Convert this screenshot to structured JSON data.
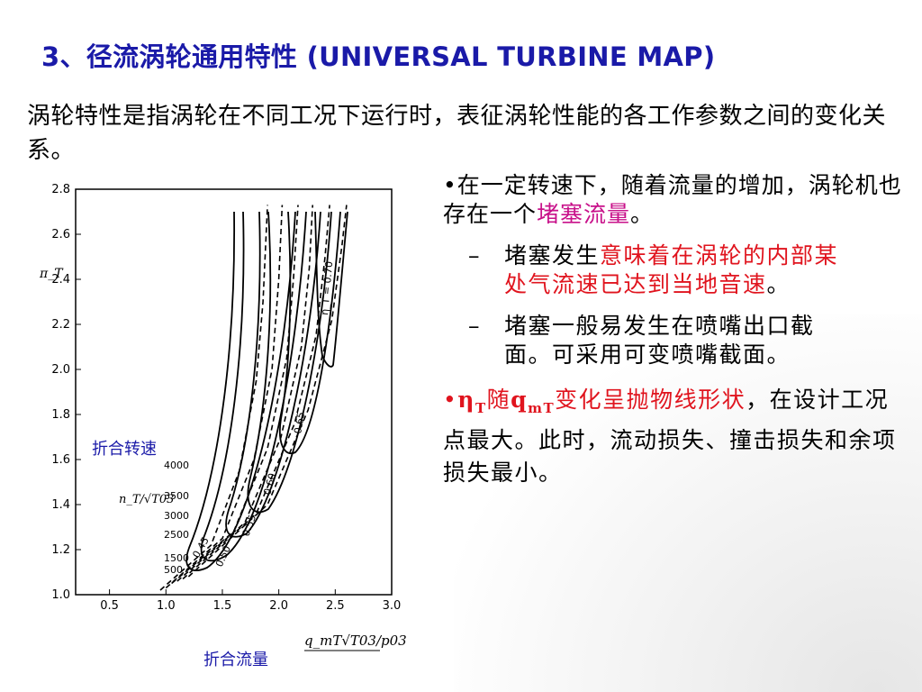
{
  "title": "3、径流涡轮通用特性 (UNIVERSAL TURBINE MAP)",
  "intro": "涡轮特性是指涡轮在不同工况下运行时，表征涡轮性能的各工作参数之间的变化关系。",
  "labels": {
    "speed": "折合转速",
    "flow": "折合流量"
  },
  "bullet1": {
    "prefix": "•在一定转速下，随着流量的增加，涡轮机也存在一个",
    "highlight": "堵塞流量",
    "suffix": "。"
  },
  "sub1": {
    "dash": "–",
    "prefix": "堵塞发生",
    "highlight": "意味着在涡轮的内部某处气流速已达到当地音速",
    "suffix": "。"
  },
  "sub2": {
    "dash": "–",
    "text": "堵塞一般易发生在喷嘴出口截面。可采用可变喷嘴截面。"
  },
  "bullet3": {
    "bullet": "•",
    "eta": "η",
    "eta_sub": "T",
    "sui": "随",
    "q": "q",
    "q_sub": "mT",
    "highlight": "变化呈抛物线形状",
    "suffix": "，在设计工况点最大。此时，流动损失、撞击损失和余项损失最小。"
  },
  "colors": {
    "title": "#1a1aa8",
    "red": "#e0141e",
    "magenta": "#c8118a"
  },
  "chart_data": {
    "type": "line",
    "x_ticks": [
      "0.5",
      "1.0",
      "1.5",
      "2.0",
      "2.5",
      "3.0"
    ],
    "y_ticks": [
      "1.0",
      "1.2",
      "1.4",
      "1.6",
      "1.8",
      "2.0",
      "2.2",
      "2.4",
      "2.6",
      "2.8"
    ],
    "xlim": [
      0.2,
      3.0
    ],
    "ylim": [
      1.0,
      2.8
    ],
    "ylabel": "π_T",
    "speed_label": "n_T/√T03",
    "flow_label": "q_mT√T03/p03",
    "speed_lines": [
      "4000",
      "3500",
      "3000",
      "2500",
      "1500",
      "500"
    ],
    "efficiency_labels": [
      "η_T = 0.70",
      "0.65",
      "0.60",
      "0.55",
      "0.50",
      "0.45"
    ],
    "speed_lines_values": [
      [
        [
          0.95,
          1.02
        ],
        [
          1.4,
          1.22
        ],
        [
          1.65,
          1.55
        ],
        [
          1.8,
          1.95
        ],
        [
          1.86,
          2.3
        ],
        [
          1.9,
          2.73
        ]
      ],
      [
        [
          1.0,
          1.03
        ],
        [
          1.5,
          1.25
        ],
        [
          1.78,
          1.6
        ],
        [
          1.94,
          2.0
        ],
        [
          2.0,
          2.4
        ],
        [
          2.03,
          2.73
        ]
      ],
      [
        [
          1.05,
          1.05
        ],
        [
          1.6,
          1.28
        ],
        [
          1.9,
          1.65
        ],
        [
          2.07,
          2.05
        ],
        [
          2.13,
          2.4
        ],
        [
          2.17,
          2.73
        ]
      ],
      [
        [
          1.1,
          1.06
        ],
        [
          1.7,
          1.32
        ],
        [
          2.02,
          1.7
        ],
        [
          2.2,
          2.1
        ],
        [
          2.27,
          2.45
        ],
        [
          2.3,
          2.73
        ]
      ],
      [
        [
          1.15,
          1.07
        ],
        [
          1.8,
          1.36
        ],
        [
          2.14,
          1.76
        ],
        [
          2.33,
          2.15
        ],
        [
          2.41,
          2.5
        ],
        [
          2.45,
          2.73
        ]
      ],
      [
        [
          1.2,
          1.08
        ],
        [
          1.9,
          1.4
        ],
        [
          2.26,
          1.82
        ],
        [
          2.47,
          2.22
        ],
        [
          2.56,
          2.55
        ],
        [
          2.6,
          2.73
        ]
      ]
    ]
  }
}
